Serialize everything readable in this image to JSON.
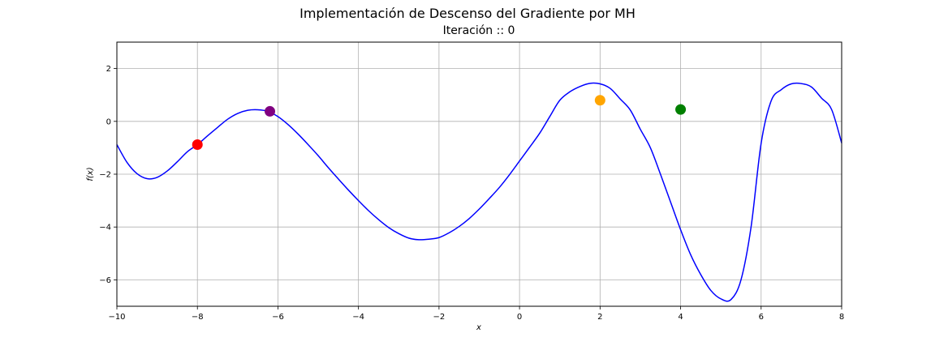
{
  "chart_data": {
    "type": "line",
    "title": "Implementación de Descenso del Gradiente por MH",
    "subtitle": "Iteración :: 0",
    "xlabel": "x",
    "ylabel": "f(x)",
    "xlim": [
      -10,
      8
    ],
    "ylim": [
      -7,
      3
    ],
    "xticks": [
      -10,
      -8,
      -6,
      -4,
      -2,
      0,
      2,
      4,
      6,
      8
    ],
    "yticks": [
      2,
      0,
      -2,
      -4,
      -6
    ],
    "grid": true,
    "legend": "none",
    "series": [
      {
        "color": "#0000ff",
        "x": [
          -10,
          -9.75,
          -9.5,
          -9.25,
          -9,
          -8.75,
          -8.5,
          -8.25,
          -8,
          -7.75,
          -7.5,
          -7.25,
          -7,
          -6.75,
          -6.5,
          -6.25,
          -6,
          -5.75,
          -5.5,
          -5.25,
          -5,
          -4.75,
          -4.5,
          -4.25,
          -4,
          -3.75,
          -3.5,
          -3.25,
          -3,
          -2.75,
          -2.5,
          -2.25,
          -2,
          -1.75,
          -1.5,
          -1.25,
          -1,
          -0.75,
          -0.5,
          -0.25,
          0,
          0.25,
          0.5,
          0.75,
          1,
          1.25,
          1.5,
          1.75,
          2,
          2.25,
          2.5,
          2.75,
          3,
          3.25,
          3.5,
          3.75,
          4,
          4.25,
          4.5,
          4.75,
          5,
          5.25,
          5.5,
          5.75,
          6,
          6.25,
          6.5,
          6.75,
          7,
          7.25,
          7.5,
          7.75,
          8
        ],
        "y": [
          -0.88,
          -1.55,
          -1.98,
          -2.17,
          -2.12,
          -1.88,
          -1.53,
          -1.15,
          -0.88,
          -0.55,
          -0.23,
          0.08,
          0.3,
          0.42,
          0.44,
          0.38,
          0.18,
          -0.12,
          -0.48,
          -0.88,
          -1.3,
          -1.75,
          -2.18,
          -2.6,
          -3.0,
          -3.38,
          -3.72,
          -4.02,
          -4.25,
          -4.42,
          -4.48,
          -4.46,
          -4.4,
          -4.22,
          -3.98,
          -3.68,
          -3.32,
          -2.92,
          -2.5,
          -2.02,
          -1.5,
          -0.98,
          -0.45,
          0.18,
          0.8,
          1.12,
          1.32,
          1.44,
          1.42,
          1.25,
          0.85,
          0.43,
          -0.3,
          -1.0,
          -2.0,
          -3.05,
          -4.1,
          -5.05,
          -5.8,
          -6.4,
          -6.72,
          -6.75,
          -6.0,
          -4.0,
          -0.83,
          0.78,
          1.2,
          1.42,
          1.43,
          1.3,
          0.88,
          0.45,
          -0.82
        ]
      }
    ],
    "points": [
      {
        "x": -8.0,
        "y": -0.88,
        "color": "#ff0000"
      },
      {
        "x": -6.2,
        "y": 0.38,
        "color": "#800080"
      },
      {
        "x": 2.0,
        "y": 0.8,
        "color": "#ffa500"
      },
      {
        "x": 4.0,
        "y": 0.45,
        "color": "#008000"
      }
    ]
  }
}
